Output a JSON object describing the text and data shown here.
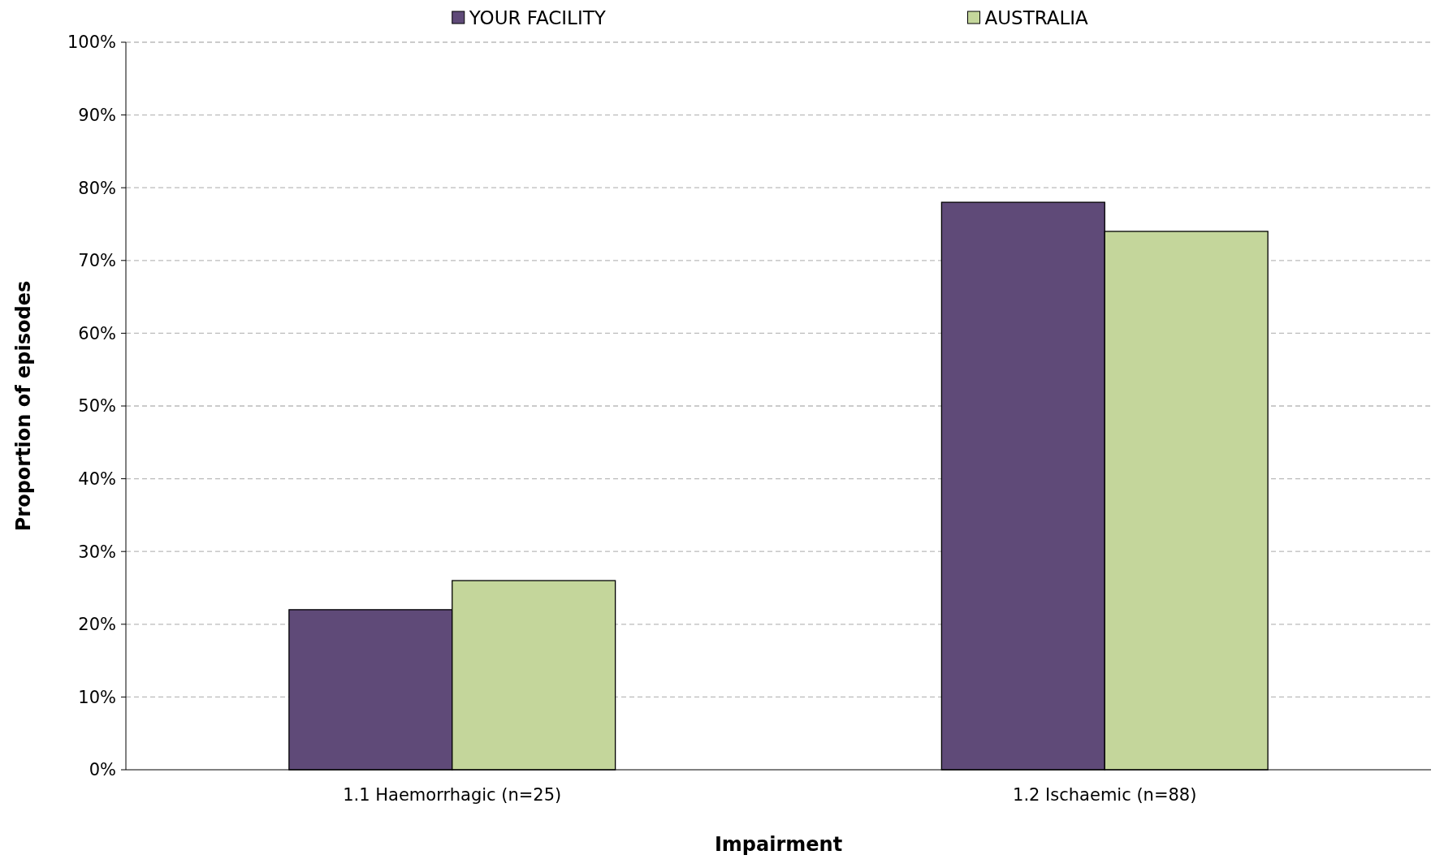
{
  "chart_data": {
    "type": "bar",
    "xlabel": "Impairment",
    "ylabel": "Proportion of episodes",
    "categories": [
      "1.1 Haemorrhagic (n=25)",
      "1.2 Ischaemic (n=88)"
    ],
    "series": [
      {
        "name": "YOUR FACILITY",
        "color": "#5f4a78",
        "values": [
          22,
          78
        ]
      },
      {
        "name": "AUSTRALIA",
        "color": "#c4d69b",
        "values": [
          26,
          74
        ]
      }
    ],
    "ylim": [
      0,
      100
    ],
    "yticks": [
      {
        "value": 0,
        "label": "0%"
      },
      {
        "value": 10,
        "label": "10%"
      },
      {
        "value": 20,
        "label": "20%"
      },
      {
        "value": 30,
        "label": "30%"
      },
      {
        "value": 40,
        "label": "40%"
      },
      {
        "value": 50,
        "label": "50%"
      },
      {
        "value": 60,
        "label": "60%"
      },
      {
        "value": 70,
        "label": "70%"
      },
      {
        "value": 80,
        "label": "80%"
      },
      {
        "value": 90,
        "label": "90%"
      },
      {
        "value": 100,
        "label": "100%"
      }
    ],
    "grid": "y",
    "legend": "top"
  }
}
